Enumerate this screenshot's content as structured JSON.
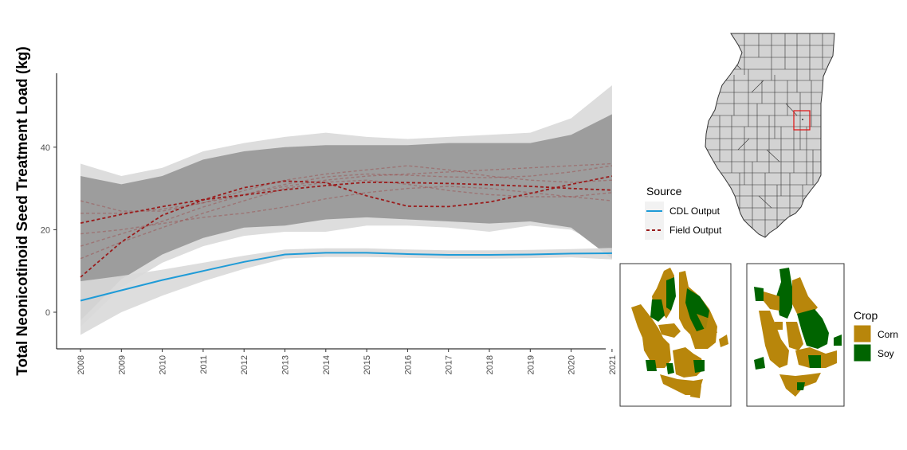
{
  "chart_data": {
    "type": "line",
    "title": "",
    "xlabel": "",
    "ylabel": "Total Neonicotinoid Seed Treatment Load (kg)",
    "x": [
      "2008",
      "2009",
      "2010",
      "2011",
      "2012",
      "2013",
      "2014",
      "2015",
      "2016",
      "2017",
      "2018",
      "2019",
      "2020",
      "2021"
    ],
    "yticks": [
      0,
      20,
      40
    ],
    "ylim": [
      -9,
      58
    ],
    "grid": false,
    "colors": {
      "cdl": "#1f9bd7",
      "field": "#9a1c1c",
      "ribbon": "#999999",
      "ribbon_light": "#d9d9d9"
    },
    "series": [
      {
        "name": "CDL Output",
        "style": "solid",
        "values": [
          2.8,
          5.3,
          7.8,
          10,
          12.2,
          14,
          14.4,
          14.4,
          14.1,
          13.9,
          13.9,
          14,
          14.2,
          14.3
        ]
      },
      {
        "name": "Field Output",
        "style": "dashed",
        "values": [
          21.6,
          23.7,
          25.6,
          27.3,
          28.4,
          29.7,
          30.7,
          31.5,
          31.4,
          31.2,
          30.9,
          30.5,
          30,
          29.6
        ]
      },
      {
        "name": "Field Output",
        "style": "dashed",
        "values": [
          8.5,
          17,
          23.5,
          27.2,
          30.2,
          31.8,
          31.4,
          28.2,
          25.7,
          25.6,
          26.7,
          28.8,
          31,
          33
        ]
      },
      {
        "name": "Field Output",
        "style": "dashed-faded",
        "values": [
          16,
          19,
          22,
          25.5,
          28.5,
          31,
          32.8,
          33.5,
          33.2,
          32.8,
          32.6,
          33,
          34,
          35.5
        ]
      },
      {
        "name": "Field Output",
        "style": "dashed-faded",
        "values": [
          27,
          24.5,
          24.5,
          26.5,
          29.5,
          32,
          33.5,
          34.5,
          35.5,
          34.5,
          33,
          32,
          31.5,
          32
        ]
      },
      {
        "name": "Field Output",
        "style": "dashed-faded",
        "values": [
          13,
          17,
          20.5,
          24,
          27,
          30,
          31.5,
          32,
          31,
          29.5,
          28.5,
          28,
          28,
          29
        ]
      },
      {
        "name": "Field Output",
        "style": "dashed-faded",
        "values": [
          19,
          20,
          21.5,
          23,
          24,
          25.5,
          27.5,
          29,
          30,
          30.5,
          30,
          29,
          28,
          27
        ]
      },
      {
        "name": "Field Output",
        "style": "dashed-faded",
        "values": [
          24,
          24,
          25,
          26.5,
          28.5,
          30.5,
          32,
          33,
          33.5,
          34,
          34.5,
          35,
          35.5,
          36
        ]
      }
    ],
    "ribbons": [
      {
        "series": "CDL Output",
        "lower": [
          -5.5,
          0,
          4,
          7.5,
          10.5,
          13,
          13.4,
          13.4,
          13.2,
          13,
          13,
          13.1,
          13.3,
          12.8
        ],
        "upper": [
          7.5,
          8.8,
          10.3,
          12,
          13.7,
          15.2,
          15.5,
          15.5,
          15.2,
          15,
          15,
          15.1,
          15.3,
          15.6
        ]
      },
      {
        "series": "Field Output",
        "lower": [
          -3.5,
          6,
          12,
          16,
          18.5,
          19.5,
          19.5,
          21,
          21,
          20.5,
          19.5,
          21,
          20,
          15
        ],
        "upper": [
          36,
          33,
          35,
          39,
          41,
          42.5,
          43.5,
          42.5,
          42,
          42.5,
          43,
          43.5,
          47,
          55
        ]
      },
      {
        "series": "Field Output",
        "lower": [
          -2,
          8,
          14,
          18,
          20.5,
          21,
          22.5,
          23,
          22.5,
          22,
          21.5,
          22,
          20.5,
          13
        ],
        "upper": [
          33,
          31,
          33,
          37,
          39,
          40,
          40.5,
          40.5,
          40.5,
          41,
          41,
          41,
          43,
          48
        ]
      }
    ]
  },
  "legend_source": {
    "title": "Source",
    "items": [
      {
        "label": "CDL Output",
        "style": "solid"
      },
      {
        "label": "Field Output",
        "style": "dashed"
      }
    ]
  },
  "legend_crop": {
    "title": "Crop",
    "items": [
      {
        "label": "Corn",
        "color": "#b8860b"
      },
      {
        "label": "Soy",
        "color": "#006400"
      }
    ]
  },
  "map": {
    "fill": "#d3d3d3",
    "stroke": "#333333",
    "highlight": "#e01010"
  }
}
